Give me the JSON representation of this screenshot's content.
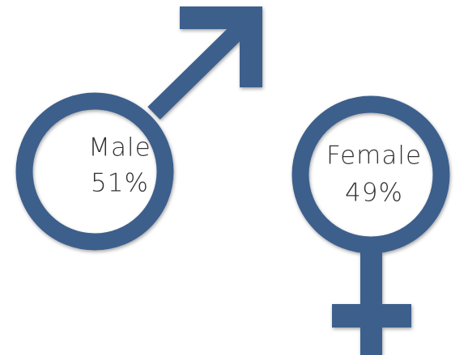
{
  "chart_data": {
    "type": "gender",
    "categories": [
      "Male",
      "Female"
    ],
    "values": [
      51,
      49
    ],
    "value_labels": [
      "51%",
      "49%"
    ],
    "color": "#3d5f8c"
  }
}
